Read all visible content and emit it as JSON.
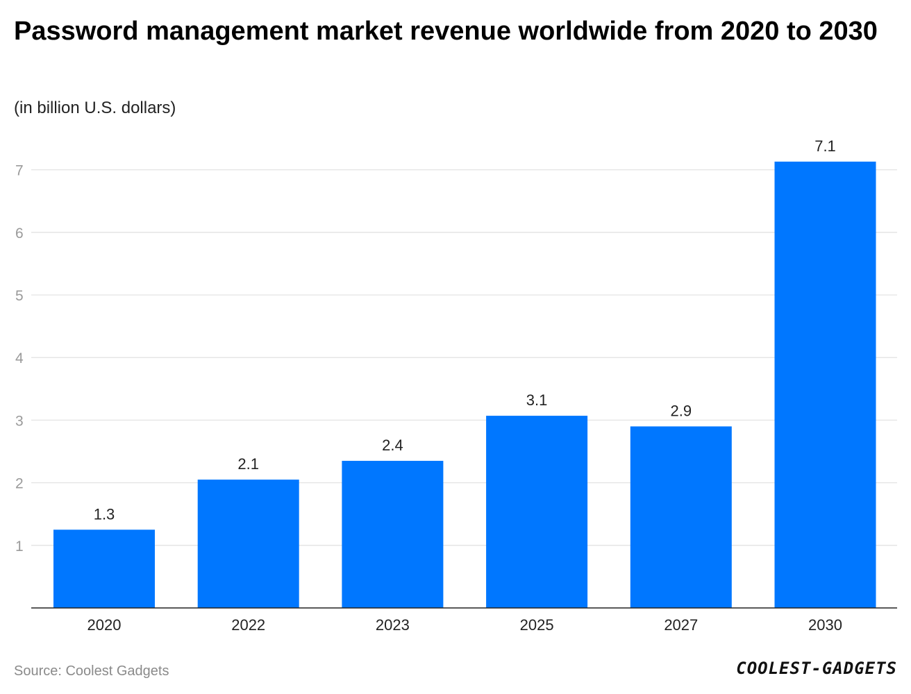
{
  "chart_data": {
    "type": "bar",
    "title": "Password management market revenue worldwide from 2020 to 2030",
    "subtitle": "(in billion U.S. dollars)",
    "categories": [
      "2020",
      "2022",
      "2023",
      "2025",
      "2027",
      "2030"
    ],
    "values": [
      1.3,
      2.1,
      2.4,
      3.1,
      2.9,
      7.1
    ],
    "plotted_values": [
      1.25,
      2.05,
      2.35,
      3.07,
      2.9,
      7.13
    ],
    "data_labels": [
      "1.3",
      "2.1",
      "2.4",
      "3.1",
      "2.9",
      "7.1"
    ],
    "y_ticks": [
      1,
      2,
      3,
      4,
      5,
      6,
      7
    ],
    "ylim": [
      0,
      7.5
    ],
    "xlabel": "",
    "ylabel": "",
    "grid": true,
    "bar_color": "#0077ff"
  },
  "source": "Source: Coolest Gadgets",
  "logo_text": "COOLEST-GADGETS"
}
